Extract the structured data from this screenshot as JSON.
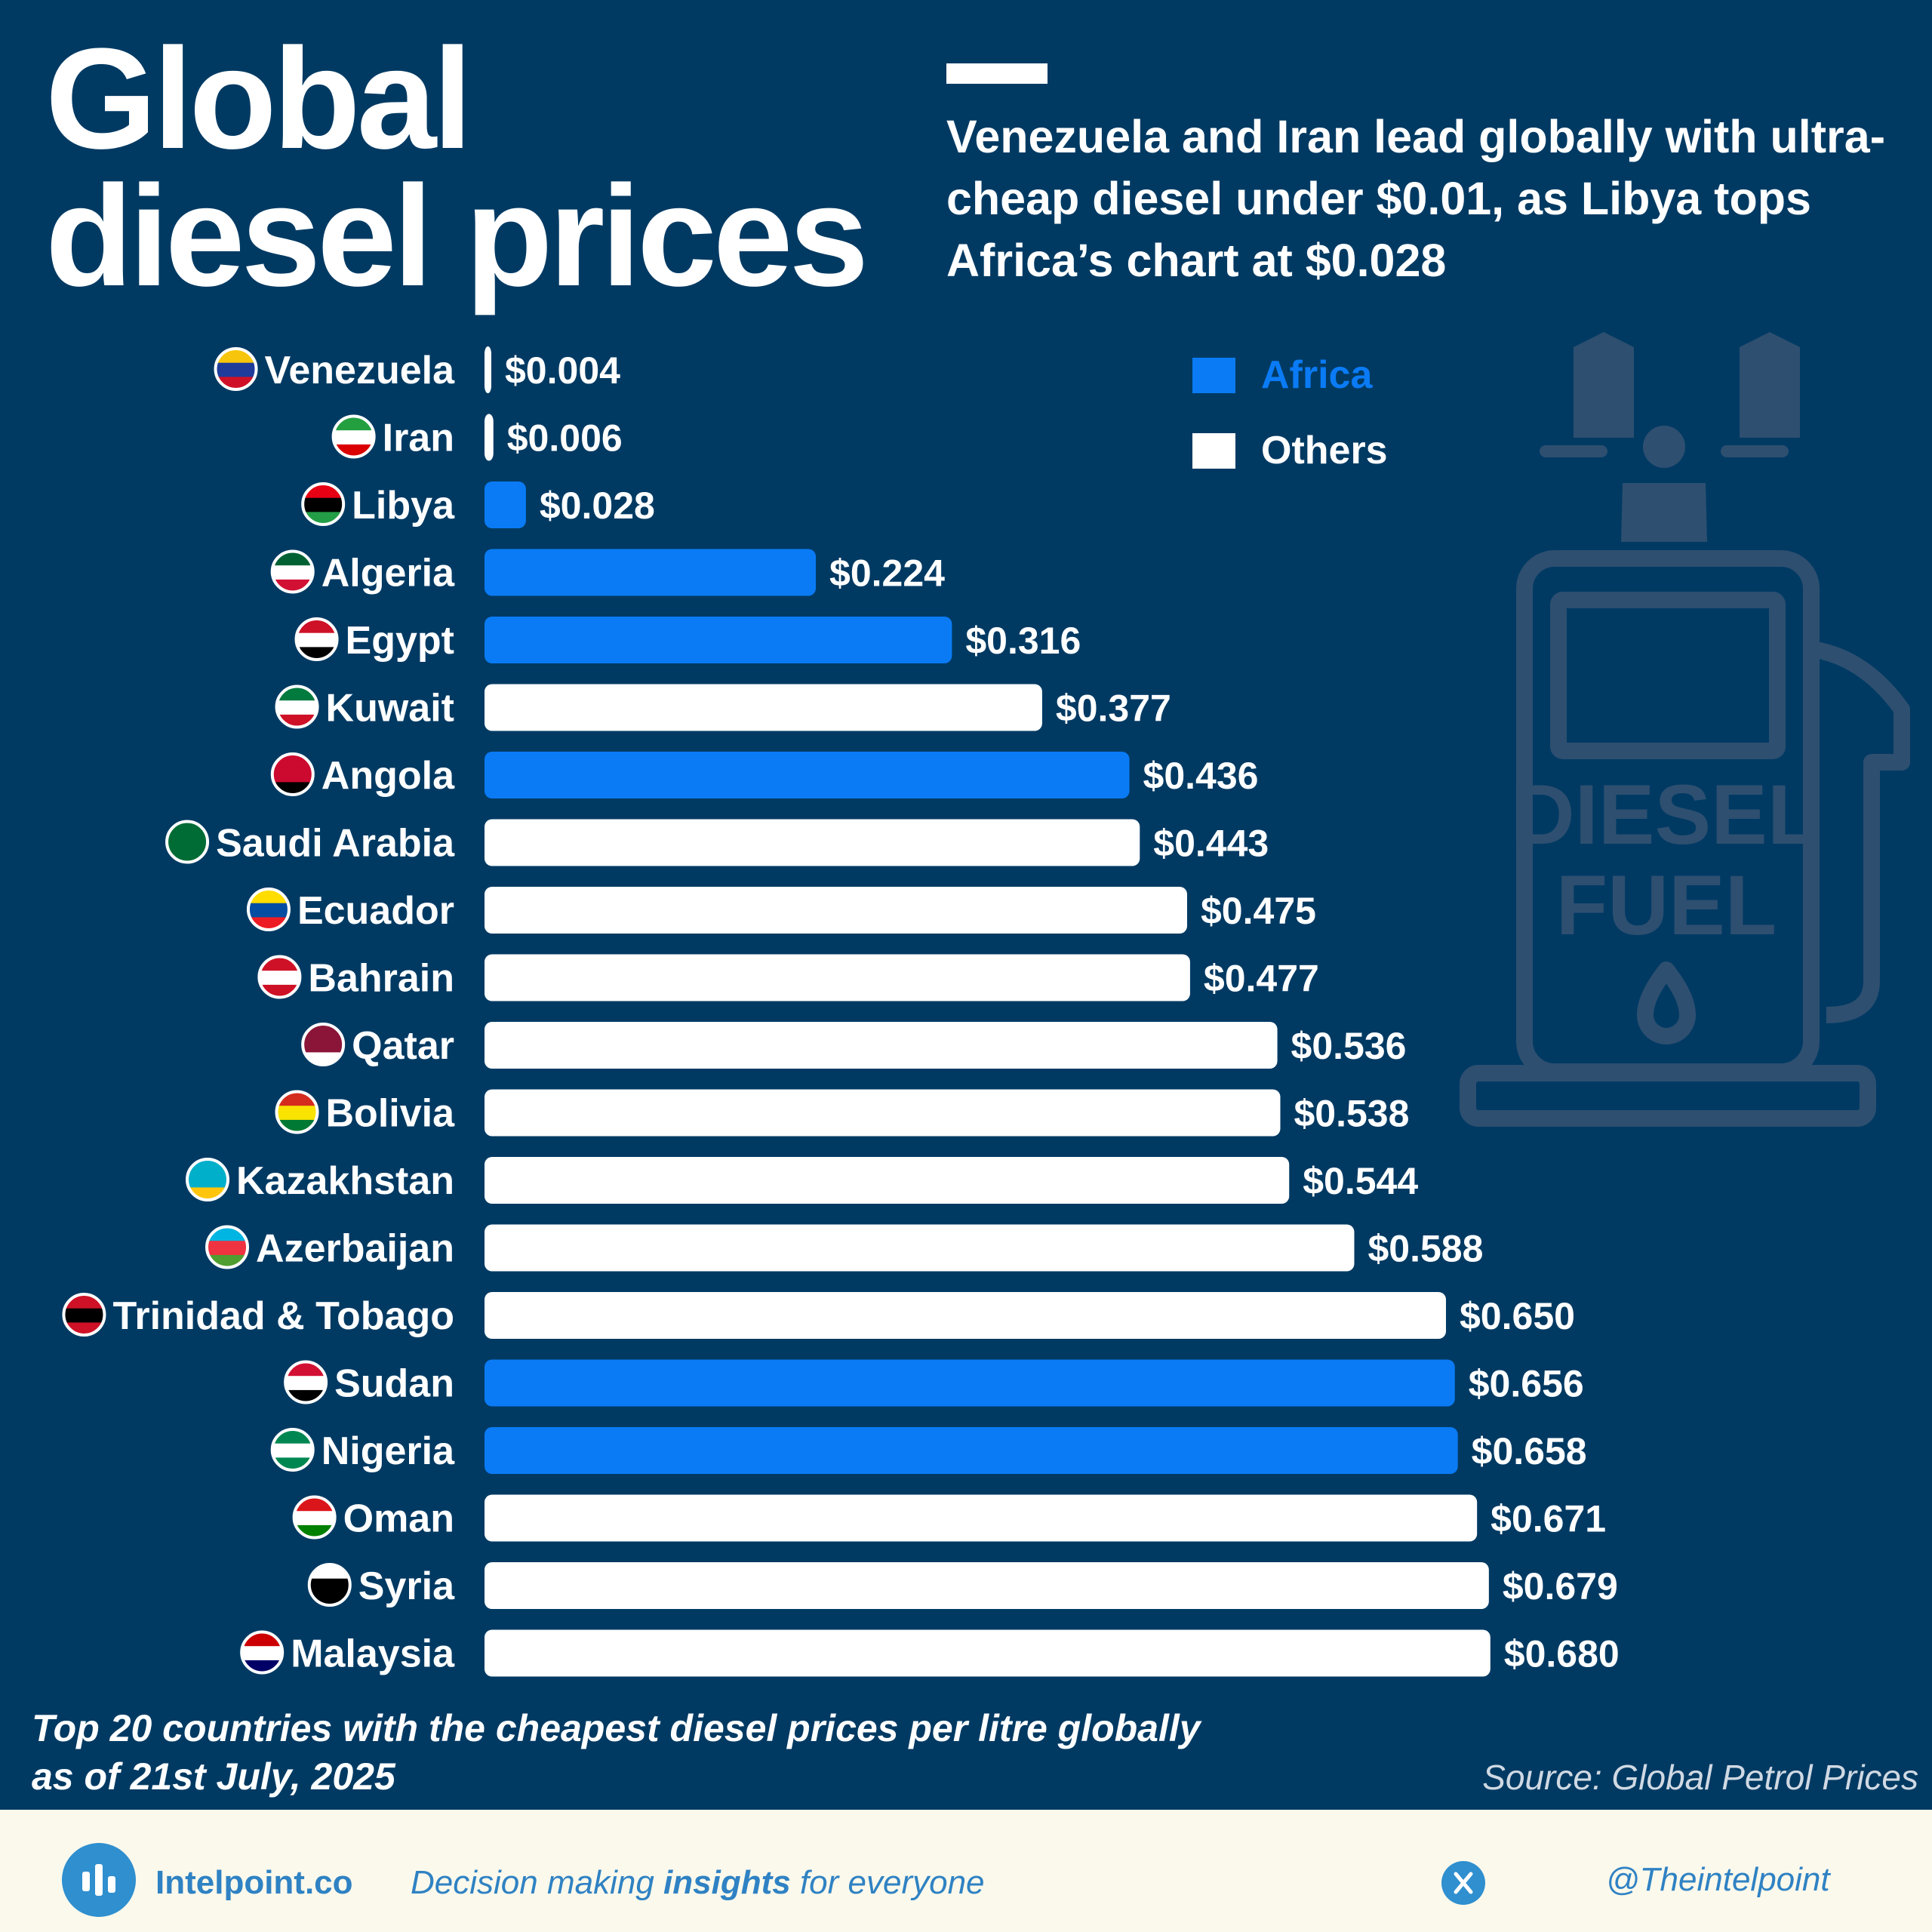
{
  "header": {
    "title_line1": "Global",
    "title_line2": "diesel prices",
    "subtitle": "Venezuela and Iran lead globally with ultra-cheap diesel under $0.01, as Libya tops Africa’s chart at $0.028"
  },
  "legend": {
    "africa_label": "Africa",
    "others_label": "Others"
  },
  "colors": {
    "background": "#003a63",
    "africa": "#0a7bf5",
    "others": "#ffffff",
    "watermark": "#2e4f70"
  },
  "watermark_icon": {
    "name": "diesel-pump-icon",
    "line1": "DIESEL",
    "line2": "FUEL"
  },
  "chart_data": {
    "type": "bar",
    "orientation": "horizontal",
    "categories": [
      "Venezuela",
      "Iran",
      "Libya",
      "Algeria",
      "Egypt",
      "Kuwait",
      "Angola",
      "Saudi Arabia",
      "Ecuador",
      "Bahrain",
      "Qatar",
      "Bolivia",
      "Kazakhstan",
      "Azerbaijan",
      "Trinidad & Tobago",
      "Sudan",
      "Nigeria",
      "Oman",
      "Syria",
      "Malaysia"
    ],
    "values": [
      0.004,
      0.006,
      0.028,
      0.224,
      0.316,
      0.377,
      0.436,
      0.443,
      0.475,
      0.477,
      0.536,
      0.538,
      0.544,
      0.588,
      0.65,
      0.656,
      0.658,
      0.671,
      0.679,
      0.68
    ],
    "value_labels": [
      "$0.004",
      "$0.006",
      "$0.028",
      "$0.224",
      "$0.316",
      "$0.377",
      "$0.436",
      "$0.443",
      "$0.475",
      "$0.477",
      "$0.536",
      "$0.538",
      "$0.544",
      "$0.588",
      "$0.650",
      "$0.656",
      "$0.658",
      "$0.671",
      "$0.679",
      "$0.680"
    ],
    "groups": [
      "Others",
      "Others",
      "Africa",
      "Africa",
      "Africa",
      "Others",
      "Africa",
      "Others",
      "Others",
      "Others",
      "Others",
      "Others",
      "Others",
      "Others",
      "Others",
      "Africa",
      "Africa",
      "Others",
      "Others",
      "Others"
    ],
    "flag_icons": [
      "flag-venezuela",
      "flag-iran",
      "flag-libya",
      "flag-algeria",
      "flag-egypt",
      "flag-kuwait",
      "flag-angola",
      "flag-saudi-arabia",
      "flag-ecuador",
      "flag-bahrain",
      "flag-qatar",
      "flag-bolivia",
      "flag-kazakhstan",
      "flag-azerbaijan",
      "flag-trinidad-tobago",
      "flag-sudan",
      "flag-nigeria",
      "flag-oman",
      "flag-syria",
      "flag-malaysia"
    ],
    "legend_position": "top-right",
    "grid": false
  },
  "footnote": {
    "line1": "Top 20 countries with the cheapest diesel prices per litre globally",
    "line2": "as of 21st July, 2025"
  },
  "source": "Source: Global Petrol Prices",
  "footer": {
    "brand": "Intelpoint.co",
    "tagline_before": "Decision making ",
    "tagline_bold": "insights",
    "tagline_after": " for everyone",
    "x_icon": "x-logo-icon",
    "handle": "@Theintelpoint"
  }
}
